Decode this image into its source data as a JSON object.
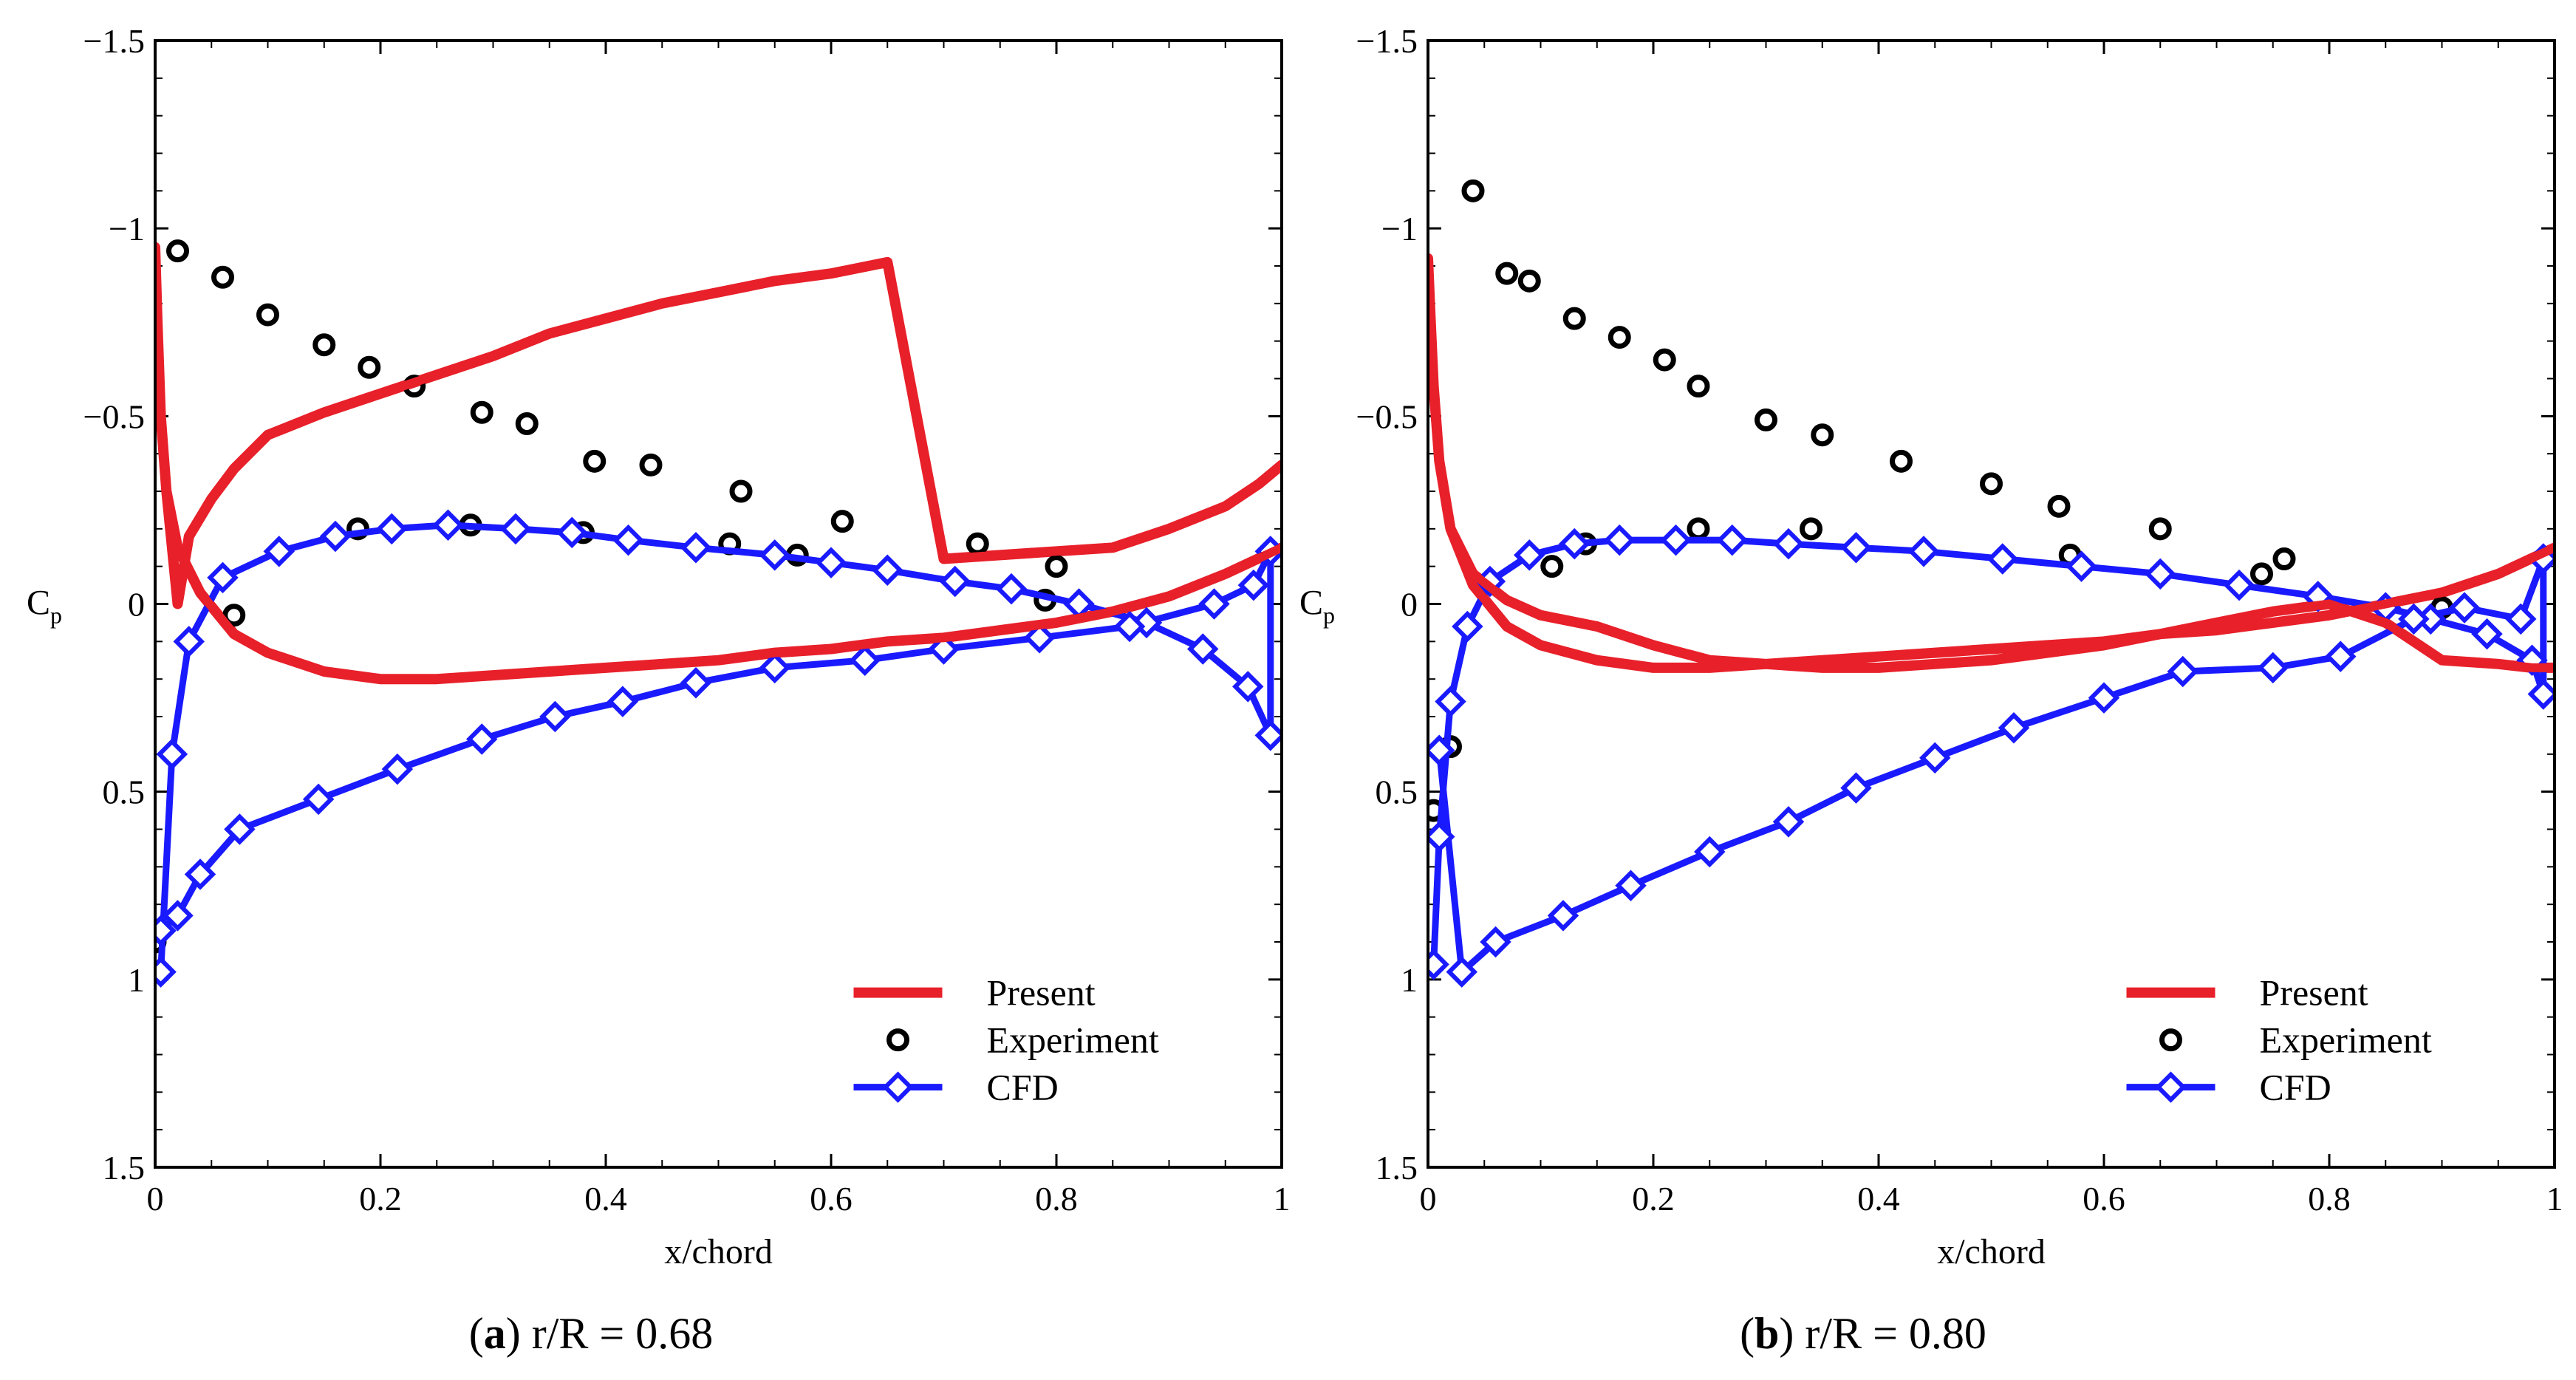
{
  "figure": {
    "captions": [
      {
        "label": "a",
        "text": " r/R = 0.68"
      },
      {
        "label": "b",
        "text": " r/R = 0.80"
      }
    ]
  },
  "colors": {
    "present": "#e8202a",
    "experiment": "#000000",
    "cfd": "#1a1aff"
  },
  "chart_data": [
    {
      "type": "line",
      "title": "(a) r/R = 0.68",
      "xlabel": "x/chord",
      "ylabel": "C",
      "ylabel_sub": "p",
      "xlim": [
        0,
        1
      ],
      "ylim": [
        1.5,
        -1.5
      ],
      "y_inverted": true,
      "xticks": [
        0,
        0.2,
        0.4,
        0.6,
        0.8,
        1
      ],
      "xtick_labels": [
        "0",
        "0.2",
        "0.4",
        "0.6",
        "0.8",
        "1"
      ],
      "yticks": [
        -1.5,
        -1,
        -0.5,
        0,
        0.5,
        1,
        1.5
      ],
      "ytick_labels": [
        "−1.5",
        "−1",
        "−0.5",
        "0",
        "0.5",
        "1",
        "1.5"
      ],
      "legend": {
        "position": "bottom-right",
        "entries": [
          "Present",
          "Experiment",
          "CFD"
        ]
      },
      "series": [
        {
          "name": "Present",
          "style": "line",
          "x": [
            1.0,
            0.95,
            0.9,
            0.85,
            0.8,
            0.75,
            0.7,
            0.65,
            0.6,
            0.55,
            0.5,
            0.45,
            0.4,
            0.35,
            0.3,
            0.25,
            0.2,
            0.15,
            0.1,
            0.07,
            0.04,
            0.02,
            0.01,
            0.005,
            0.002,
            0.0,
            0.002,
            0.005,
            0.01,
            0.02,
            0.03,
            0.05,
            0.07,
            0.1,
            0.15,
            0.2,
            0.25,
            0.3,
            0.35,
            0.4,
            0.45,
            0.5,
            0.55,
            0.6,
            0.65,
            0.7,
            0.75,
            0.8,
            0.85,
            0.9,
            0.95,
            0.98,
            1.0
          ],
          "y": [
            -0.15,
            -0.08,
            -0.02,
            0.02,
            0.05,
            0.07,
            0.09,
            0.1,
            0.12,
            0.13,
            0.15,
            0.16,
            0.17,
            0.18,
            0.19,
            0.2,
            0.2,
            0.18,
            0.13,
            0.08,
            -0.03,
            -0.15,
            -0.3,
            -0.5,
            -0.75,
            -0.95,
            -0.75,
            -0.5,
            -0.3,
            0.0,
            -0.18,
            -0.28,
            -0.36,
            -0.45,
            -0.51,
            -0.56,
            -0.61,
            -0.66,
            -0.72,
            -0.76,
            -0.8,
            -0.83,
            -0.86,
            -0.88,
            -0.91,
            -0.12,
            -0.13,
            -0.14,
            -0.15,
            -0.2,
            -0.26,
            -0.32,
            -0.37
          ]
        },
        {
          "name": "Experiment",
          "style": "marker-circle",
          "x": [
            0.0,
            0.02,
            0.06,
            0.1,
            0.15,
            0.19,
            0.23,
            0.29,
            0.33,
            0.39,
            0.44,
            0.52,
            0.61,
            0.73,
            0.8,
            0.07,
            0.18,
            0.28,
            0.38,
            0.51,
            0.57,
            0.79
          ],
          "y": [
            0.9,
            -0.94,
            -0.87,
            -0.77,
            -0.69,
            -0.63,
            -0.58,
            -0.51,
            -0.48,
            -0.38,
            -0.37,
            -0.3,
            -0.22,
            -0.16,
            -0.1,
            0.03,
            -0.2,
            -0.21,
            -0.19,
            -0.16,
            -0.13,
            -0.01
          ]
        },
        {
          "name": "CFD",
          "style": "line-diamond",
          "x": [
            0.005,
            0.015,
            0.03,
            0.06,
            0.11,
            0.16,
            0.21,
            0.26,
            0.32,
            0.37,
            0.42,
            0.48,
            0.55,
            0.6,
            0.65,
            0.71,
            0.76,
            0.82,
            0.88,
            0.93,
            0.97,
            0.99,
            0.99,
            0.975,
            0.94,
            0.865,
            0.785,
            0.7,
            0.63,
            0.55,
            0.48,
            0.415,
            0.355,
            0.29,
            0.215,
            0.145,
            0.075,
            0.04,
            0.02,
            0.005
          ],
          "y": [
            0.98,
            0.4,
            0.1,
            -0.07,
            -0.14,
            -0.18,
            -0.2,
            -0.21,
            -0.2,
            -0.19,
            -0.17,
            -0.15,
            -0.13,
            -0.11,
            -0.09,
            -0.06,
            -0.04,
            0.0,
            0.05,
            0.12,
            0.22,
            0.35,
            -0.14,
            -0.05,
            0.0,
            0.06,
            0.09,
            0.12,
            0.15,
            0.17,
            0.21,
            0.26,
            0.3,
            0.36,
            0.44,
            0.52,
            0.6,
            0.72,
            0.83,
            0.87
          ]
        }
      ]
    },
    {
      "type": "line",
      "title": "(b) r/R = 0.80",
      "xlabel": "x/chord",
      "ylabel": "C",
      "ylabel_sub": "p",
      "xlim": [
        0,
        1
      ],
      "ylim": [
        1.5,
        -1.5
      ],
      "y_inverted": true,
      "xticks": [
        0,
        0.2,
        0.4,
        0.6,
        0.8,
        1
      ],
      "xtick_labels": [
        "0",
        "0.2",
        "0.4",
        "0.6",
        "0.8",
        "1"
      ],
      "yticks": [
        -1.5,
        -1,
        -0.5,
        0,
        0.5,
        1,
        1.5
      ],
      "ytick_labels": [
        "−1.5",
        "−1",
        "−0.5",
        "0",
        "0.5",
        "1",
        "1.5"
      ],
      "legend": {
        "position": "bottom-right",
        "entries": [
          "Present",
          "Experiment",
          "CFD"
        ]
      },
      "series": [
        {
          "name": "Present",
          "style": "line",
          "x": [
            1.0,
            0.95,
            0.9,
            0.85,
            0.8,
            0.75,
            0.7,
            0.65,
            0.6,
            0.55,
            0.5,
            0.45,
            0.4,
            0.35,
            0.3,
            0.25,
            0.2,
            0.15,
            0.1,
            0.07,
            0.04,
            0.02,
            0.01,
            0.005,
            0.002,
            0.0,
            0.002,
            0.005,
            0.01,
            0.02,
            0.04,
            0.07,
            0.1,
            0.15,
            0.2,
            0.25,
            0.3,
            0.35,
            0.4,
            0.45,
            0.5,
            0.55,
            0.6,
            0.65,
            0.7,
            0.75,
            0.8,
            0.85,
            0.9,
            0.95,
            0.98,
            1.0
          ],
          "y": [
            -0.15,
            -0.08,
            -0.03,
            0.0,
            0.03,
            0.05,
            0.07,
            0.08,
            0.1,
            0.11,
            0.12,
            0.13,
            0.14,
            0.15,
            0.16,
            0.17,
            0.17,
            0.15,
            0.11,
            0.06,
            -0.05,
            -0.2,
            -0.38,
            -0.58,
            -0.78,
            -0.92,
            -0.78,
            -0.58,
            -0.38,
            -0.2,
            -0.08,
            -0.01,
            0.03,
            0.06,
            0.11,
            0.15,
            0.16,
            0.17,
            0.17,
            0.16,
            0.15,
            0.13,
            0.11,
            0.08,
            0.05,
            0.02,
            0.0,
            0.05,
            0.15,
            0.16,
            0.17,
            0.17
          ]
        },
        {
          "name": "Experiment",
          "style": "marker-circle",
          "x": [
            0.005,
            0.04,
            0.07,
            0.09,
            0.13,
            0.17,
            0.21,
            0.24,
            0.3,
            0.35,
            0.42,
            0.5,
            0.56,
            0.65,
            0.76,
            0.9,
            0.02,
            0.11,
            0.14,
            0.24,
            0.34,
            0.57,
            0.74
          ],
          "y": [
            0.55,
            -1.1,
            -0.88,
            -0.86,
            -0.76,
            -0.71,
            -0.65,
            -0.58,
            -0.49,
            -0.45,
            -0.38,
            -0.32,
            -0.26,
            -0.2,
            -0.12,
            0.01,
            0.38,
            -0.1,
            -0.16,
            -0.2,
            -0.2,
            -0.13,
            -0.08
          ]
        },
        {
          "name": "CFD",
          "style": "line-diamond",
          "x": [
            0.005,
            0.01,
            0.02,
            0.035,
            0.055,
            0.09,
            0.13,
            0.17,
            0.22,
            0.27,
            0.32,
            0.38,
            0.44,
            0.51,
            0.58,
            0.65,
            0.72,
            0.79,
            0.85,
            0.89,
            0.94,
            0.98,
            0.99,
            0.99,
            0.97,
            0.92,
            0.875,
            0.81,
            0.75,
            0.67,
            0.6,
            0.52,
            0.45,
            0.38,
            0.32,
            0.25,
            0.18,
            0.12,
            0.06,
            0.03,
            0.01
          ],
          "y": [
            0.96,
            0.62,
            0.26,
            0.06,
            -0.06,
            -0.13,
            -0.16,
            -0.17,
            -0.17,
            -0.17,
            -0.16,
            -0.15,
            -0.14,
            -0.12,
            -0.1,
            -0.08,
            -0.05,
            -0.02,
            0.01,
            0.04,
            0.08,
            0.15,
            0.24,
            -0.12,
            0.04,
            0.01,
            0.04,
            0.14,
            0.17,
            0.18,
            0.25,
            0.33,
            0.41,
            0.49,
            0.58,
            0.66,
            0.75,
            0.83,
            0.9,
            0.98,
            0.39
          ]
        }
      ]
    }
  ]
}
